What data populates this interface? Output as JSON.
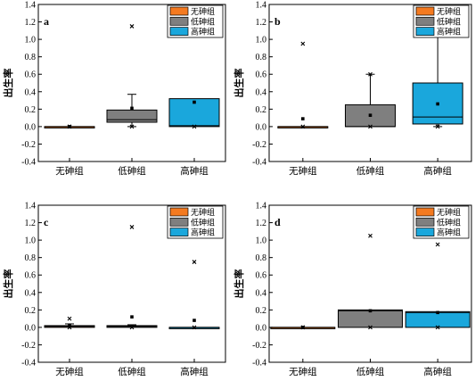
{
  "legend_labels": [
    "无砷组",
    "低砷组",
    "高砷组"
  ],
  "colors": {
    "无砷组": "#f47a20",
    "低砷组": "#7f7f7f",
    "高砷组": "#1aa7dc"
  },
  "chart_data": [
    {
      "type": "box",
      "panel_label": "a",
      "ylabel": "出生率",
      "categories": [
        "无砷组",
        "低砷组",
        "高砷组"
      ],
      "ylim": [
        -0.4,
        1.4
      ],
      "yticks": [
        -0.4,
        -0.2,
        0.0,
        0.2,
        0.4,
        0.6,
        0.8,
        1.0,
        1.2,
        1.4
      ],
      "legend_position": "top-right",
      "boxes": [
        {
          "group": "无砷组",
          "whisker_low": 0,
          "q1": 0,
          "median": 0,
          "q3": 0,
          "whisker_high": 0,
          "mean": 0,
          "outliers_min": 0,
          "outliers_max": 0
        },
        {
          "group": "低砷组",
          "whisker_low": 0,
          "q1": 0.05,
          "median": 0.08,
          "q3": 0.19,
          "whisker_high": 0.37,
          "mean": 0.21,
          "outliers_min": 0,
          "outliers_max": 1.15
        },
        {
          "group": "高砷组",
          "whisker_low": 0,
          "q1": 0,
          "median": 0.01,
          "q3": 0.32,
          "whisker_high": 0.32,
          "mean": 0.28,
          "outliers_min": 0,
          "outliers_max": 1.15
        }
      ]
    },
    {
      "type": "box",
      "panel_label": "b",
      "ylabel": "出生率",
      "categories": [
        "无砷组",
        "低砷组",
        "高砷组"
      ],
      "ylim": [
        -0.4,
        1.4
      ],
      "yticks": [
        -0.4,
        -0.2,
        0.0,
        0.2,
        0.4,
        0.6,
        0.8,
        1.0,
        1.2,
        1.4
      ],
      "legend_position": "top-right",
      "boxes": [
        {
          "group": "无砷组",
          "whisker_low": 0,
          "q1": 0,
          "median": 0,
          "q3": 0,
          "whisker_high": 0,
          "mean": 0.09,
          "outliers_min": 0,
          "outliers_max": 0.95
        },
        {
          "group": "低砷组",
          "whisker_low": 0,
          "q1": 0,
          "median": 0,
          "q3": 0.25,
          "whisker_high": 0.6,
          "mean": 0.13,
          "outliers_min": 0,
          "outliers_max": 0.6
        },
        {
          "group": "高砷组",
          "whisker_low": 0,
          "q1": 0.03,
          "median": 0.11,
          "q3": 0.5,
          "whisker_high": 1.05,
          "mean": 0.26,
          "outliers_min": 0,
          "outliers_max": 1.05
        }
      ]
    },
    {
      "type": "box",
      "panel_label": "c",
      "ylabel": "出生率",
      "categories": [
        "无砷组",
        "低砷组",
        "高砷组"
      ],
      "ylim": [
        -0.4,
        1.4
      ],
      "yticks": [
        -0.4,
        -0.2,
        0.0,
        0.2,
        0.4,
        0.6,
        0.8,
        1.0,
        1.2,
        1.4
      ],
      "legend_position": "top-right",
      "boxes": [
        {
          "group": "无砷组",
          "whisker_low": 0,
          "q1": 0,
          "median": 0.01,
          "q3": 0.02,
          "whisker_high": 0.04,
          "mean": 0.02,
          "outliers_min": 0,
          "outliers_max": 0.1
        },
        {
          "group": "低砷组",
          "whisker_low": 0,
          "q1": 0,
          "median": 0.01,
          "q3": 0.02,
          "whisker_high": 0.03,
          "mean": 0.12,
          "outliers_min": 0,
          "outliers_max": 1.15
        },
        {
          "group": "高砷组",
          "whisker_low": 0,
          "q1": 0,
          "median": 0,
          "q3": 0,
          "whisker_high": 0,
          "mean": 0.08,
          "outliers_min": 0,
          "outliers_max": 0.75
        }
      ]
    },
    {
      "type": "box",
      "panel_label": "d",
      "ylabel": "出生率",
      "categories": [
        "无砷组",
        "低砷组",
        "高砷组"
      ],
      "ylim": [
        -0.4,
        1.4
      ],
      "yticks": [
        -0.4,
        -0.2,
        0.0,
        0.2,
        0.4,
        0.6,
        0.8,
        1.0,
        1.2,
        1.4
      ],
      "legend_position": "top-right",
      "boxes": [
        {
          "group": "无砷组",
          "whisker_low": 0,
          "q1": 0,
          "median": 0,
          "q3": 0,
          "whisker_high": 0,
          "mean": 0,
          "outliers_min": 0,
          "outliers_max": 0
        },
        {
          "group": "低砷组",
          "whisker_low": 0,
          "q1": 0,
          "median": 0.19,
          "q3": 0.2,
          "whisker_high": 0.2,
          "mean": 0.19,
          "outliers_min": 0,
          "outliers_max": 1.05
        },
        {
          "group": "高砷组",
          "whisker_low": 0,
          "q1": 0,
          "median": 0.17,
          "q3": 0.18,
          "whisker_high": 0.18,
          "mean": 0.17,
          "outliers_min": 0,
          "outliers_max": 0.95
        }
      ]
    }
  ]
}
